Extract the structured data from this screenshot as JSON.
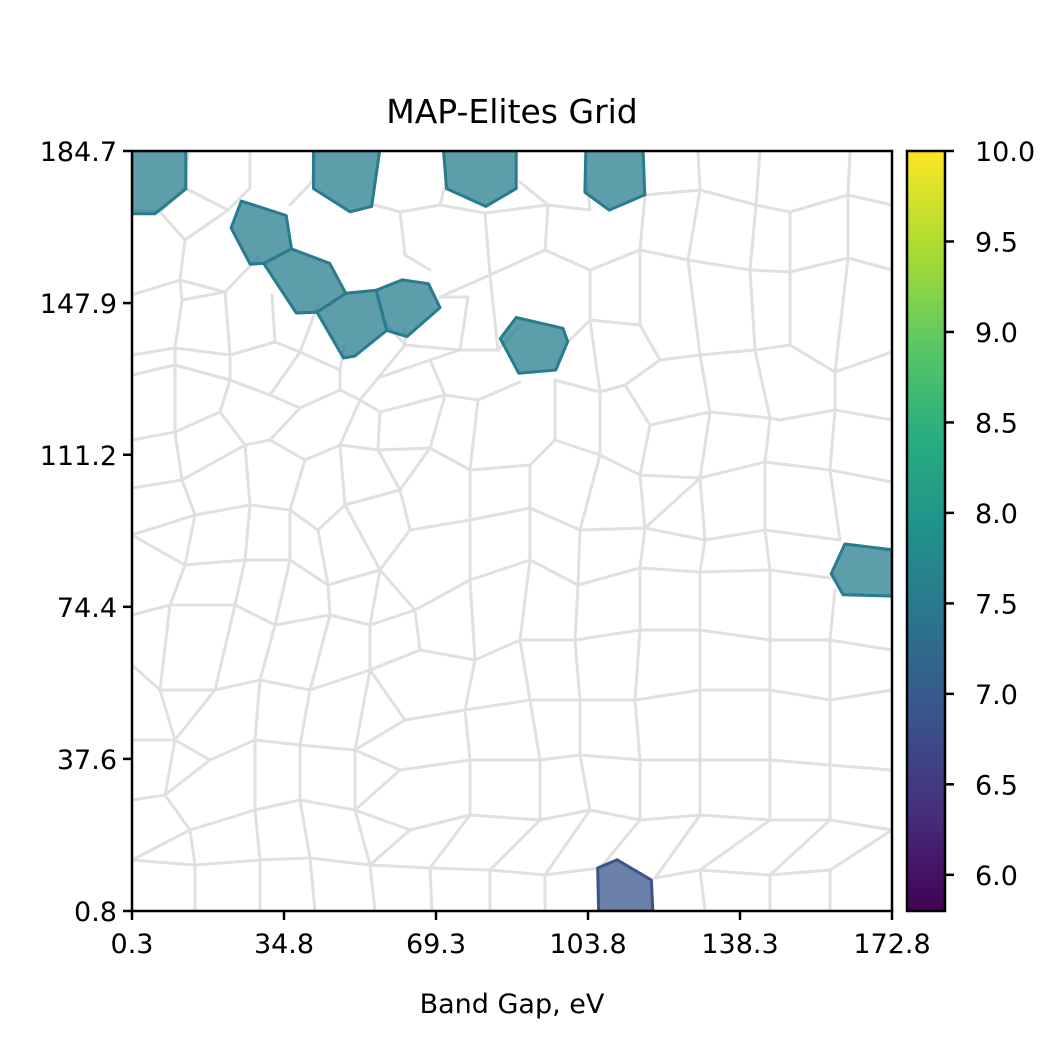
{
  "chart_data": {
    "type": "heatmap",
    "subtype": "cvt-voronoi-map-elites",
    "title": "MAP-Elites Grid",
    "xlabel": "Band Gap, eV",
    "ylabel": "",
    "xlim": [
      0.3,
      172.8
    ],
    "ylim": [
      0.8,
      184.7
    ],
    "xticks": [
      "0.3",
      "34.8",
      "69.3",
      "103.8",
      "138.3",
      "172.8"
    ],
    "yticks": [
      "0.8",
      "37.6",
      "74.4",
      "111.2",
      "147.9",
      "184.7"
    ],
    "grid": false,
    "empty_cell_edge_color": "#e0e0e0",
    "colorbar": {
      "colormap": "viridis",
      "range": [
        5.8,
        10.0
      ],
      "ticks": [
        "6.0",
        "6.5",
        "7.0",
        "7.5",
        "8.0",
        "8.5",
        "9.0",
        "9.5",
        "10.0"
      ],
      "placement": "right"
    },
    "filled_cells": [
      {
        "value": 7.55,
        "polygon": [
          [
            0.3,
            184.7
          ],
          [
            12.5,
            184.7
          ],
          [
            12.5,
            175.5
          ],
          [
            5.5,
            169.5
          ],
          [
            0.3,
            169.5
          ]
        ]
      },
      {
        "value": 7.55,
        "polygon": [
          [
            41.5,
            184.7
          ],
          [
            56.5,
            184.7
          ],
          [
            54.7,
            171.3
          ],
          [
            49.8,
            170
          ],
          [
            41.5,
            175.6
          ]
        ]
      },
      {
        "value": 7.55,
        "polygon": [
          [
            71,
            184.7
          ],
          [
            87.5,
            184.7
          ],
          [
            87.5,
            175.6
          ],
          [
            80.6,
            171.3
          ],
          [
            71.7,
            175.6
          ]
        ]
      },
      {
        "value": 7.55,
        "polygon": [
          [
            103.3,
            184.7
          ],
          [
            116.3,
            184.7
          ],
          [
            116.7,
            174.1
          ],
          [
            108.6,
            170.4
          ],
          [
            103.1,
            174.7
          ]
        ]
      },
      {
        "value": 7.55,
        "polygon": [
          [
            25.1,
            172.6
          ],
          [
            35.3,
            169.1
          ],
          [
            36.5,
            161
          ],
          [
            30.2,
            157.5
          ],
          [
            27.1,
            157.3
          ],
          [
            22.8,
            166.1
          ]
        ]
      },
      {
        "value": 7.55,
        "polygon": [
          [
            30.2,
            157.5
          ],
          [
            36.5,
            161
          ],
          [
            45.2,
            157.5
          ],
          [
            48.8,
            150.3
          ],
          [
            42.3,
            145.7
          ],
          [
            37.6,
            145.5
          ]
        ]
      },
      {
        "value": 7.55,
        "polygon": [
          [
            48.8,
            150.3
          ],
          [
            55.7,
            151
          ],
          [
            58.1,
            141.3
          ],
          [
            50.9,
            135.1
          ],
          [
            48.3,
            134.6
          ],
          [
            42.3,
            145.7
          ]
        ]
      },
      {
        "value": 7.55,
        "polygon": [
          [
            55.7,
            151
          ],
          [
            61.6,
            153.5
          ],
          [
            67.6,
            152.6
          ],
          [
            70.2,
            146.8
          ],
          [
            62.7,
            139.8
          ],
          [
            58.1,
            141.3
          ]
        ]
      },
      {
        "value": 7.55,
        "polygon": [
          [
            83.9,
            139.3
          ],
          [
            87.5,
            144.4
          ],
          [
            98.1,
            141.8
          ],
          [
            99.2,
            138.6
          ],
          [
            96.5,
            131.7
          ],
          [
            88.1,
            130.9
          ]
        ]
      },
      {
        "value": 7.55,
        "polygon": [
          [
            159,
            82.4
          ],
          [
            162.1,
            89.6
          ],
          [
            172.8,
            88.2
          ],
          [
            172.8,
            77
          ],
          [
            161.7,
            77.3
          ]
        ]
      },
      {
        "value": 6.9,
        "polygon": [
          [
            106,
            11.2
          ],
          [
            110.4,
            13.2
          ],
          [
            118.2,
            8.3
          ],
          [
            118.5,
            0.8
          ],
          [
            106.2,
            0.8
          ]
        ]
      }
    ]
  }
}
